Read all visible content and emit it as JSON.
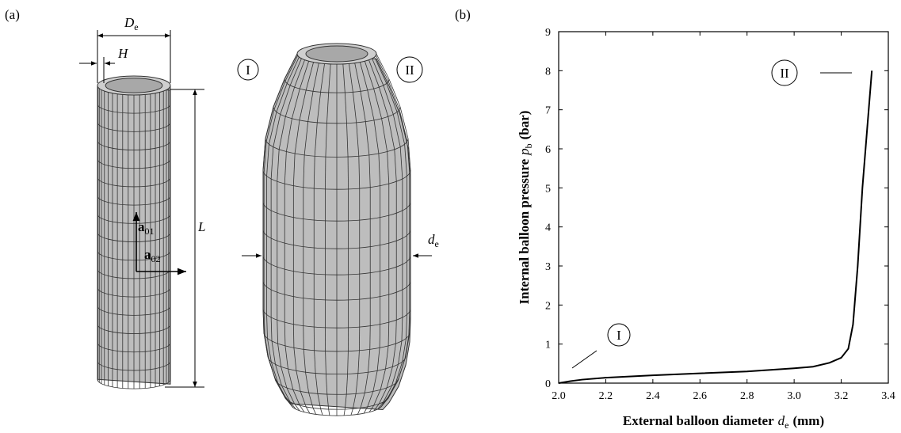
{
  "panels": {
    "a": "(a)",
    "b": "(b)"
  },
  "diagram": {
    "outer_diameter": {
      "symbol": "D",
      "subscript": "e"
    },
    "wall": "H",
    "length": "L",
    "axis1": {
      "symbol": "a",
      "subscript": "01"
    },
    "axis2": {
      "symbol": "a",
      "subscript": "02"
    },
    "balloon_diameter": {
      "symbol": "d",
      "subscript": "e"
    },
    "state1": "I",
    "state2": "II"
  },
  "chart_data": {
    "type": "line",
    "xlabel": {
      "text": "External balloon diameter",
      "symbol": "d",
      "subscript": "e",
      "unit": "(mm)"
    },
    "ylabel": {
      "text": "Internal balloon pressure",
      "symbol": "p",
      "subscript": "b",
      "unit": "(bar)"
    },
    "x": [
      2.0,
      2.05,
      2.1,
      2.2,
      2.4,
      2.6,
      2.8,
      3.0,
      3.08,
      3.15,
      3.2,
      3.23,
      3.25,
      3.27,
      3.29,
      3.31,
      3.33
    ],
    "series": [
      {
        "color": "#000000",
        "values": [
          0,
          0.05,
          0.09,
          0.14,
          0.2,
          0.25,
          0.3,
          0.38,
          0.42,
          0.52,
          0.65,
          0.88,
          1.5,
          3,
          5,
          6.5,
          8
        ]
      }
    ],
    "annotations": [
      "I",
      "II"
    ],
    "xlim": [
      2.0,
      3.4
    ],
    "ylim": [
      0,
      9
    ],
    "xticks": [
      {
        "value": 2.0,
        "label": "2.0"
      },
      2.2,
      2.4,
      2.6,
      2.8,
      {
        "value": 3.0,
        "label": "3.0"
      },
      3.2,
      3.4
    ],
    "yticks": [
      0,
      1,
      2,
      3,
      4,
      5,
      6,
      7,
      8,
      9
    ]
  }
}
